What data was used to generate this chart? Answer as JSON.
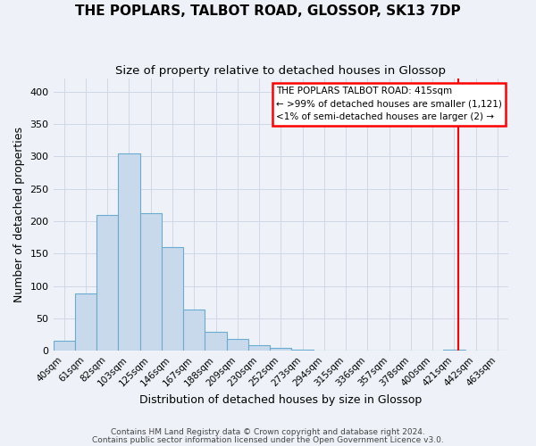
{
  "title": "THE POPLARS, TALBOT ROAD, GLOSSOP, SK13 7DP",
  "subtitle": "Size of property relative to detached houses in Glossop",
  "xlabel": "Distribution of detached houses by size in Glossop",
  "ylabel": "Number of detached properties",
  "bar_labels": [
    "40sqm",
    "61sqm",
    "82sqm",
    "103sqm",
    "125sqm",
    "146sqm",
    "167sqm",
    "188sqm",
    "209sqm",
    "230sqm",
    "252sqm",
    "273sqm",
    "294sqm",
    "315sqm",
    "336sqm",
    "357sqm",
    "378sqm",
    "400sqm",
    "421sqm",
    "442sqm",
    "463sqm"
  ],
  "bar_values": [
    16,
    88,
    210,
    304,
    213,
    160,
    64,
    30,
    19,
    9,
    4,
    2,
    1,
    1,
    0,
    0,
    0,
    0,
    2,
    0,
    1
  ],
  "bar_color": "#c9d9ec",
  "bar_edge_color": "#6aabd2",
  "ylim": [
    0,
    420
  ],
  "yticks": [
    0,
    50,
    100,
    150,
    200,
    250,
    300,
    350,
    400
  ],
  "annotation_line_xindex": 18.71,
  "grid_color": "#d0d8e8",
  "bg_color": "#eef2f8",
  "box_text_line1": "THE POPLARS TALBOT ROAD: 415sqm",
  "box_text_line2": "← >99% of detached houses are smaller (1,121)",
  "box_text_line3": "<1% of semi-detached houses are larger (2) →",
  "footnote1": "Contains HM Land Registry data © Crown copyright and database right 2024.",
  "footnote2": "Contains public sector information licensed under the Open Government Licence v3.0."
}
